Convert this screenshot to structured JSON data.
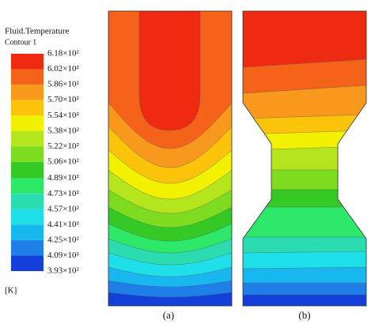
{
  "chart_data": {
    "type": "contour",
    "title": "Fluid.Temperature",
    "subtitle": "Contour 1",
    "unit": "[K]",
    "ylim": [
      393,
      618
    ],
    "yticks": [
      {
        "value": 618,
        "label": "6.18×10²"
      },
      {
        "value": 602,
        "label": "6.02×10²"
      },
      {
        "value": 586,
        "label": "5.86×10²"
      },
      {
        "value": 570,
        "label": "5.70×10²"
      },
      {
        "value": 554,
        "label": "5.54×10²"
      },
      {
        "value": 538,
        "label": "5.38×10²"
      },
      {
        "value": 522,
        "label": "5.22×10²"
      },
      {
        "value": 506,
        "label": "5.06×10²"
      },
      {
        "value": 489,
        "label": "4.89×10²"
      },
      {
        "value": 473,
        "label": "4.73×10²"
      },
      {
        "value": 457,
        "label": "4.57×10²"
      },
      {
        "value": 441,
        "label": "4.41×10²"
      },
      {
        "value": 425,
        "label": "4.25×10²"
      },
      {
        "value": 409,
        "label": "4.09×10²"
      },
      {
        "value": 393,
        "label": "3.93×10²"
      }
    ],
    "colors": [
      "#ee2b10",
      "#f5621a",
      "#f8981d",
      "#fcc30b",
      "#f2f200",
      "#b5e61d",
      "#7ddc1f",
      "#34c924",
      "#2ee86a",
      "#2bdcb0",
      "#1fe0e8",
      "#19b7f0",
      "#1e7fe8",
      "#1340d8"
    ],
    "panels": [
      "(a)",
      "(b)"
    ]
  }
}
